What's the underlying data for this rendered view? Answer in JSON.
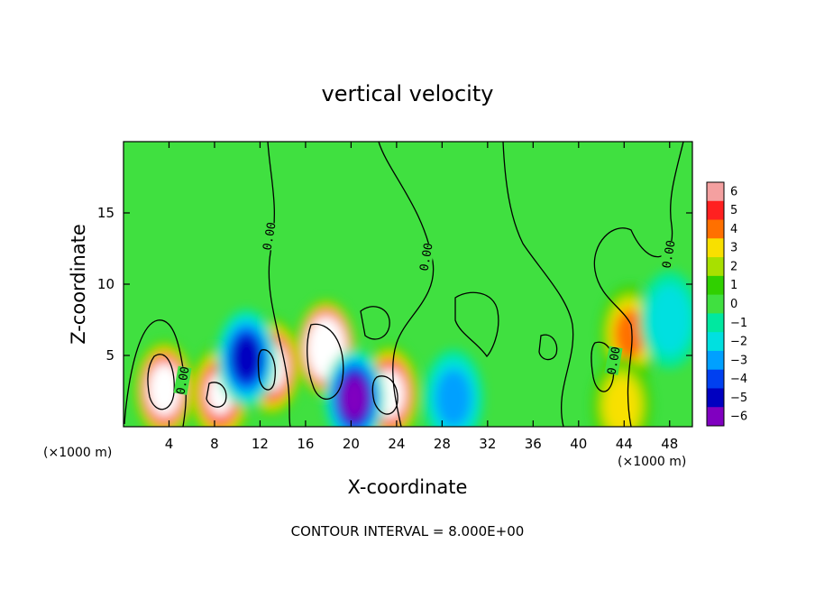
{
  "chart_data": {
    "type": "heatmap",
    "title": "vertical velocity",
    "xlabel": "X-coordinate",
    "ylabel": "Z-coordinate",
    "x_unit_label": "(×1000 m)",
    "x_unit_label_right": "(×1000 m)",
    "xlim": [
      0,
      50
    ],
    "ylim": [
      0,
      20
    ],
    "x_ticks": [
      4,
      8,
      12,
      16,
      20,
      24,
      28,
      32,
      36,
      40,
      44,
      48
    ],
    "y_ticks": [
      5,
      10,
      15
    ],
    "contour_label": "0.00",
    "contour_interval_text": "CONTOUR INTERVAL = 8.000E+00",
    "colorbar": {
      "ticks": [
        "6",
        "5",
        "4",
        "3",
        "2",
        "1",
        "0",
        "−1",
        "−2",
        "−3",
        "−4",
        "−5",
        "−6"
      ],
      "colors": [
        "#f4a0a0",
        "#ff2020",
        "#ff7000",
        "#f8e000",
        "#a8e000",
        "#30d000",
        "#40e040",
        "#00e8a0",
        "#00e0e0",
        "#00a0ff",
        "#0040f0",
        "#0000c0",
        "#8000c0"
      ],
      "over_color": "#ffffff"
    },
    "features": [
      {
        "kind": "updraft",
        "x": 3.6,
        "z": 2.6,
        "peak": 9
      },
      {
        "kind": "updraft",
        "x": 8.5,
        "z": 2.3,
        "peak": 7
      },
      {
        "kind": "updraft",
        "x": 13.0,
        "z": 4.2,
        "peak": 8
      },
      {
        "kind": "updraft",
        "x": 17.8,
        "z": 5.5,
        "peak": 12
      },
      {
        "kind": "updraft",
        "x": 23.4,
        "z": 2.3,
        "peak": 8
      },
      {
        "kind": "updraft",
        "x": 44.5,
        "z": 6.5,
        "peak": 3.5
      },
      {
        "kind": "updraft",
        "x": 43.8,
        "z": 1.5,
        "peak": 3
      },
      {
        "kind": "downdraft",
        "x": 10.8,
        "z": 4.8,
        "peak": -4.5
      },
      {
        "kind": "downdraft",
        "x": 20.3,
        "z": 2.0,
        "peak": -6
      },
      {
        "kind": "downdraft",
        "x": 29.0,
        "z": 2.0,
        "peak": -3
      },
      {
        "kind": "downdraft",
        "x": 48.0,
        "z": 7.5,
        "peak": -2
      }
    ]
  }
}
